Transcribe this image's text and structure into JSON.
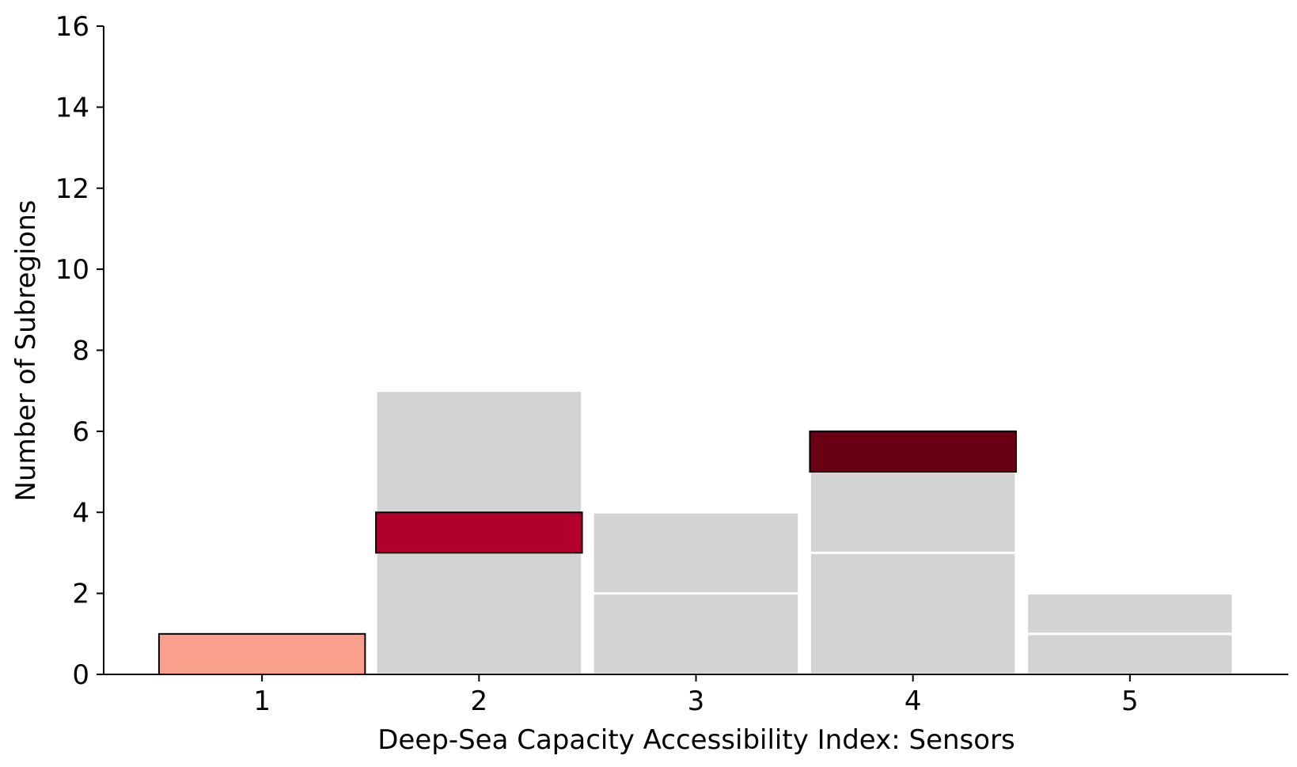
{
  "chart_data": {
    "type": "bar",
    "categories": [
      "1",
      "2",
      "3",
      "4",
      "5"
    ],
    "title": "",
    "xlabel": "Deep-Sea Capacity Accessibility Index: Sensors",
    "ylabel": "Number of Subregions",
    "ylim": [
      0,
      16
    ],
    "yticks": [
      "0",
      "2",
      "4",
      "6",
      "8",
      "10",
      "12",
      "14",
      "16"
    ],
    "grid": false,
    "stacked_segments": [
      {
        "category": "1",
        "bottom": 0,
        "top": 1,
        "highlighted": true,
        "color": "#f9a08c"
      },
      {
        "category": "2",
        "bottom": 0,
        "top": 3,
        "highlighted": false,
        "color": "#d3d3d3"
      },
      {
        "category": "2",
        "bottom": 3,
        "top": 4,
        "highlighted": true,
        "color": "#b0002b"
      },
      {
        "category": "2",
        "bottom": 4,
        "top": 7,
        "highlighted": false,
        "color": "#d3d3d3"
      },
      {
        "category": "3",
        "bottom": 0,
        "top": 2,
        "highlighted": false,
        "color": "#d3d3d3"
      },
      {
        "category": "3",
        "bottom": 2,
        "top": 4,
        "highlighted": false,
        "color": "#d3d3d3"
      },
      {
        "category": "4",
        "bottom": 0,
        "top": 3,
        "highlighted": false,
        "color": "#d3d3d3"
      },
      {
        "category": "4",
        "bottom": 3,
        "top": 5,
        "highlighted": false,
        "color": "#d3d3d3"
      },
      {
        "category": "4",
        "bottom": 5,
        "top": 6,
        "highlighted": true,
        "color": "#6a0013"
      },
      {
        "category": "5",
        "bottom": 0,
        "top": 1,
        "highlighted": false,
        "color": "#d3d3d3"
      },
      {
        "category": "5",
        "bottom": 1,
        "top": 2,
        "highlighted": false,
        "color": "#d3d3d3"
      }
    ],
    "totals": [
      1,
      7,
      4,
      6,
      2
    ]
  }
}
